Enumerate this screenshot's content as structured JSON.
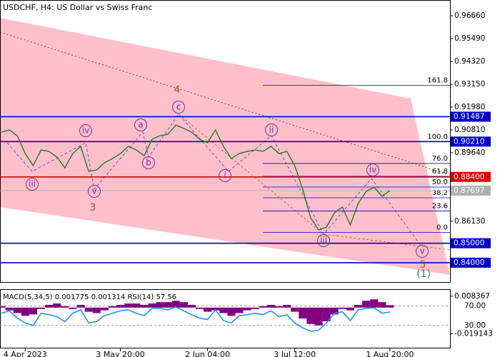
{
  "chart_data": [
    {
      "type": "line",
      "title": "USDCHF, H4:  US Dollar vs Swiss Franc",
      "categories": [
        null,
        null,
        null,
        "4 Apr 2023",
        null,
        null,
        null,
        null,
        null,
        null,
        null,
        null,
        null,
        null,
        null,
        "3 May 20:00",
        null,
        null,
        null,
        null,
        null,
        null,
        null,
        null,
        null,
        null,
        "2 Jun 04:00",
        null,
        null,
        null,
        null,
        null,
        null,
        null,
        null,
        null,
        null,
        "3 Jul 12:00",
        null,
        null,
        null,
        null,
        null,
        null,
        null,
        null,
        null,
        null,
        null,
        "1 Aug 20:00"
      ],
      "values": [
        0.90696,
        0.90806,
        0.90513,
        0.89598,
        0.88976,
        0.89781,
        0.89708,
        0.89415,
        0.88866,
        0.89598,
        0.89964,
        0.88683,
        0.88757,
        0.89122,
        0.89342,
        0.89598,
        0.89964,
        0.89781,
        0.89488,
        0.9033,
        0.90513,
        0.90586,
        0.91062,
        0.90879,
        0.90696,
        0.9033,
        0.90147,
        0.90806,
        0.89964,
        0.89342,
        0.89598,
        0.89708,
        0.89781,
        0.89708,
        0.89964,
        0.89598,
        0.89708,
        0.88976,
        0.87769,
        0.86305,
        0.85683,
        0.85829,
        0.86561,
        0.86854,
        0.85939,
        0.87037,
        0.87659,
        0.87878,
        0.87403,
        0.87697
      ],
      "color": "#1f7a1f",
      "ylim": [
        0.8301,
        0.9747
      ],
      "yticks": [
        {
          "value": 0.9666,
          "label": "0.96660"
        },
        {
          "value": 0.9549,
          "label": "0.95490"
        },
        {
          "value": 0.9432,
          "label": "0.94320"
        },
        {
          "value": 0.9315,
          "label": "0.93150"
        },
        {
          "value": 0.9198,
          "label": "0.91980"
        },
        {
          "value": 0.9081,
          "label": "0.90810"
        },
        {
          "value": 0.8964,
          "label": "0.89640"
        },
        {
          "value": 0.8613,
          "label": "0.86130"
        }
      ],
      "levels": [
        {
          "value": 0.91487,
          "label": "0.91487",
          "color": "#0000cd"
        },
        {
          "value": 0.9021,
          "label": "0.90210",
          "color": "#0000cd"
        },
        {
          "value": 0.884,
          "label": "0.88400",
          "color": "#e00000"
        },
        {
          "value": 0.87697,
          "label": "0.87697",
          "color": "#b0b0b0"
        },
        {
          "value": 0.85,
          "label": "0.85000",
          "color": "#0000cd"
        },
        {
          "value": 0.84,
          "label": "0.84000",
          "color": "#0000cd"
        }
      ],
      "fibonacci": [
        {
          "value": 0.9309,
          "label": "161.8"
        },
        {
          "value": 0.9021,
          "label": "100.0"
        },
        {
          "value": 0.8909,
          "label": "76.0"
        },
        {
          "value": 0.8843,
          "label": "61.8"
        },
        {
          "value": 0.8788,
          "label": "50.0"
        },
        {
          "value": 0.8733,
          "label": "38.2"
        },
        {
          "value": 0.8665,
          "label": "23.6"
        },
        {
          "value": 0.8555,
          "label": "0.0"
        }
      ],
      "waves": [
        {
          "label": "iii"
        },
        {
          "label": "iv"
        },
        {
          "label": "v"
        },
        {
          "label": "3"
        },
        {
          "label": "a"
        },
        {
          "label": "b"
        },
        {
          "label": "c"
        },
        {
          "label": "4"
        },
        {
          "label": "i"
        },
        {
          "label": "ii"
        },
        {
          "label": "iii"
        },
        {
          "label": "iv"
        },
        {
          "label": "v"
        },
        {
          "label": "5"
        },
        {
          "label": "(1)"
        }
      ]
    },
    {
      "type": "indicator",
      "label": "MACD(5,34,5) 0.001775 0.001314 RSI(14) 57.56",
      "series": [
        {
          "color": "#800080",
          "values": [
            0.001,
            -0.002,
            -0.004,
            -0.006,
            -0.005,
            -0.001,
            0.002,
            0.003,
            0.001,
            -0.001,
            0.002,
            -0.003,
            -0.004,
            -0.002,
            0.001,
            0.002,
            0.003,
            0.003,
            0.002,
            0.003,
            0.004,
            0.004,
            0.005,
            0.004,
            0.002,
            -0.001,
            -0.003,
            -0.002,
            -0.004,
            -0.006,
            -0.004,
            -0.002,
            -0.001,
            0.001,
            0.002,
            0.001,
            0.002,
            -0.003,
            -0.008,
            -0.012,
            -0.013,
            -0.01,
            -0.005,
            -0.001,
            -0.002,
            0.002,
            0.005,
            0.006,
            0.004,
            0.0018
          ]
        },
        {
          "color": "#1e90ff",
          "axis": "y2",
          "values": [
            55,
            60,
            45,
            35,
            30,
            55,
            52,
            48,
            38,
            55,
            62,
            35,
            38,
            50,
            55,
            60,
            62,
            55,
            50,
            65,
            65,
            62,
            68,
            60,
            52,
            45,
            42,
            62,
            40,
            35,
            50,
            52,
            55,
            52,
            60,
            48,
            52,
            35,
            25,
            18,
            20,
            35,
            55,
            58,
            40,
            62,
            65,
            66,
            55,
            57.56
          ]
        }
      ],
      "ylim": [
        -0.02933,
        0.01295
      ],
      "yticks": [
        {
          "value": 0.008367,
          "label": "0.008367"
        },
        {
          "value": -0.019143,
          "label": "-0.019143"
        }
      ],
      "y2lim": [
        -15.7,
        102.9
      ],
      "y2ticks": [
        {
          "value": 70,
          "label": "70.00"
        },
        {
          "value": 30,
          "label": "30.00"
        }
      ]
    }
  ]
}
